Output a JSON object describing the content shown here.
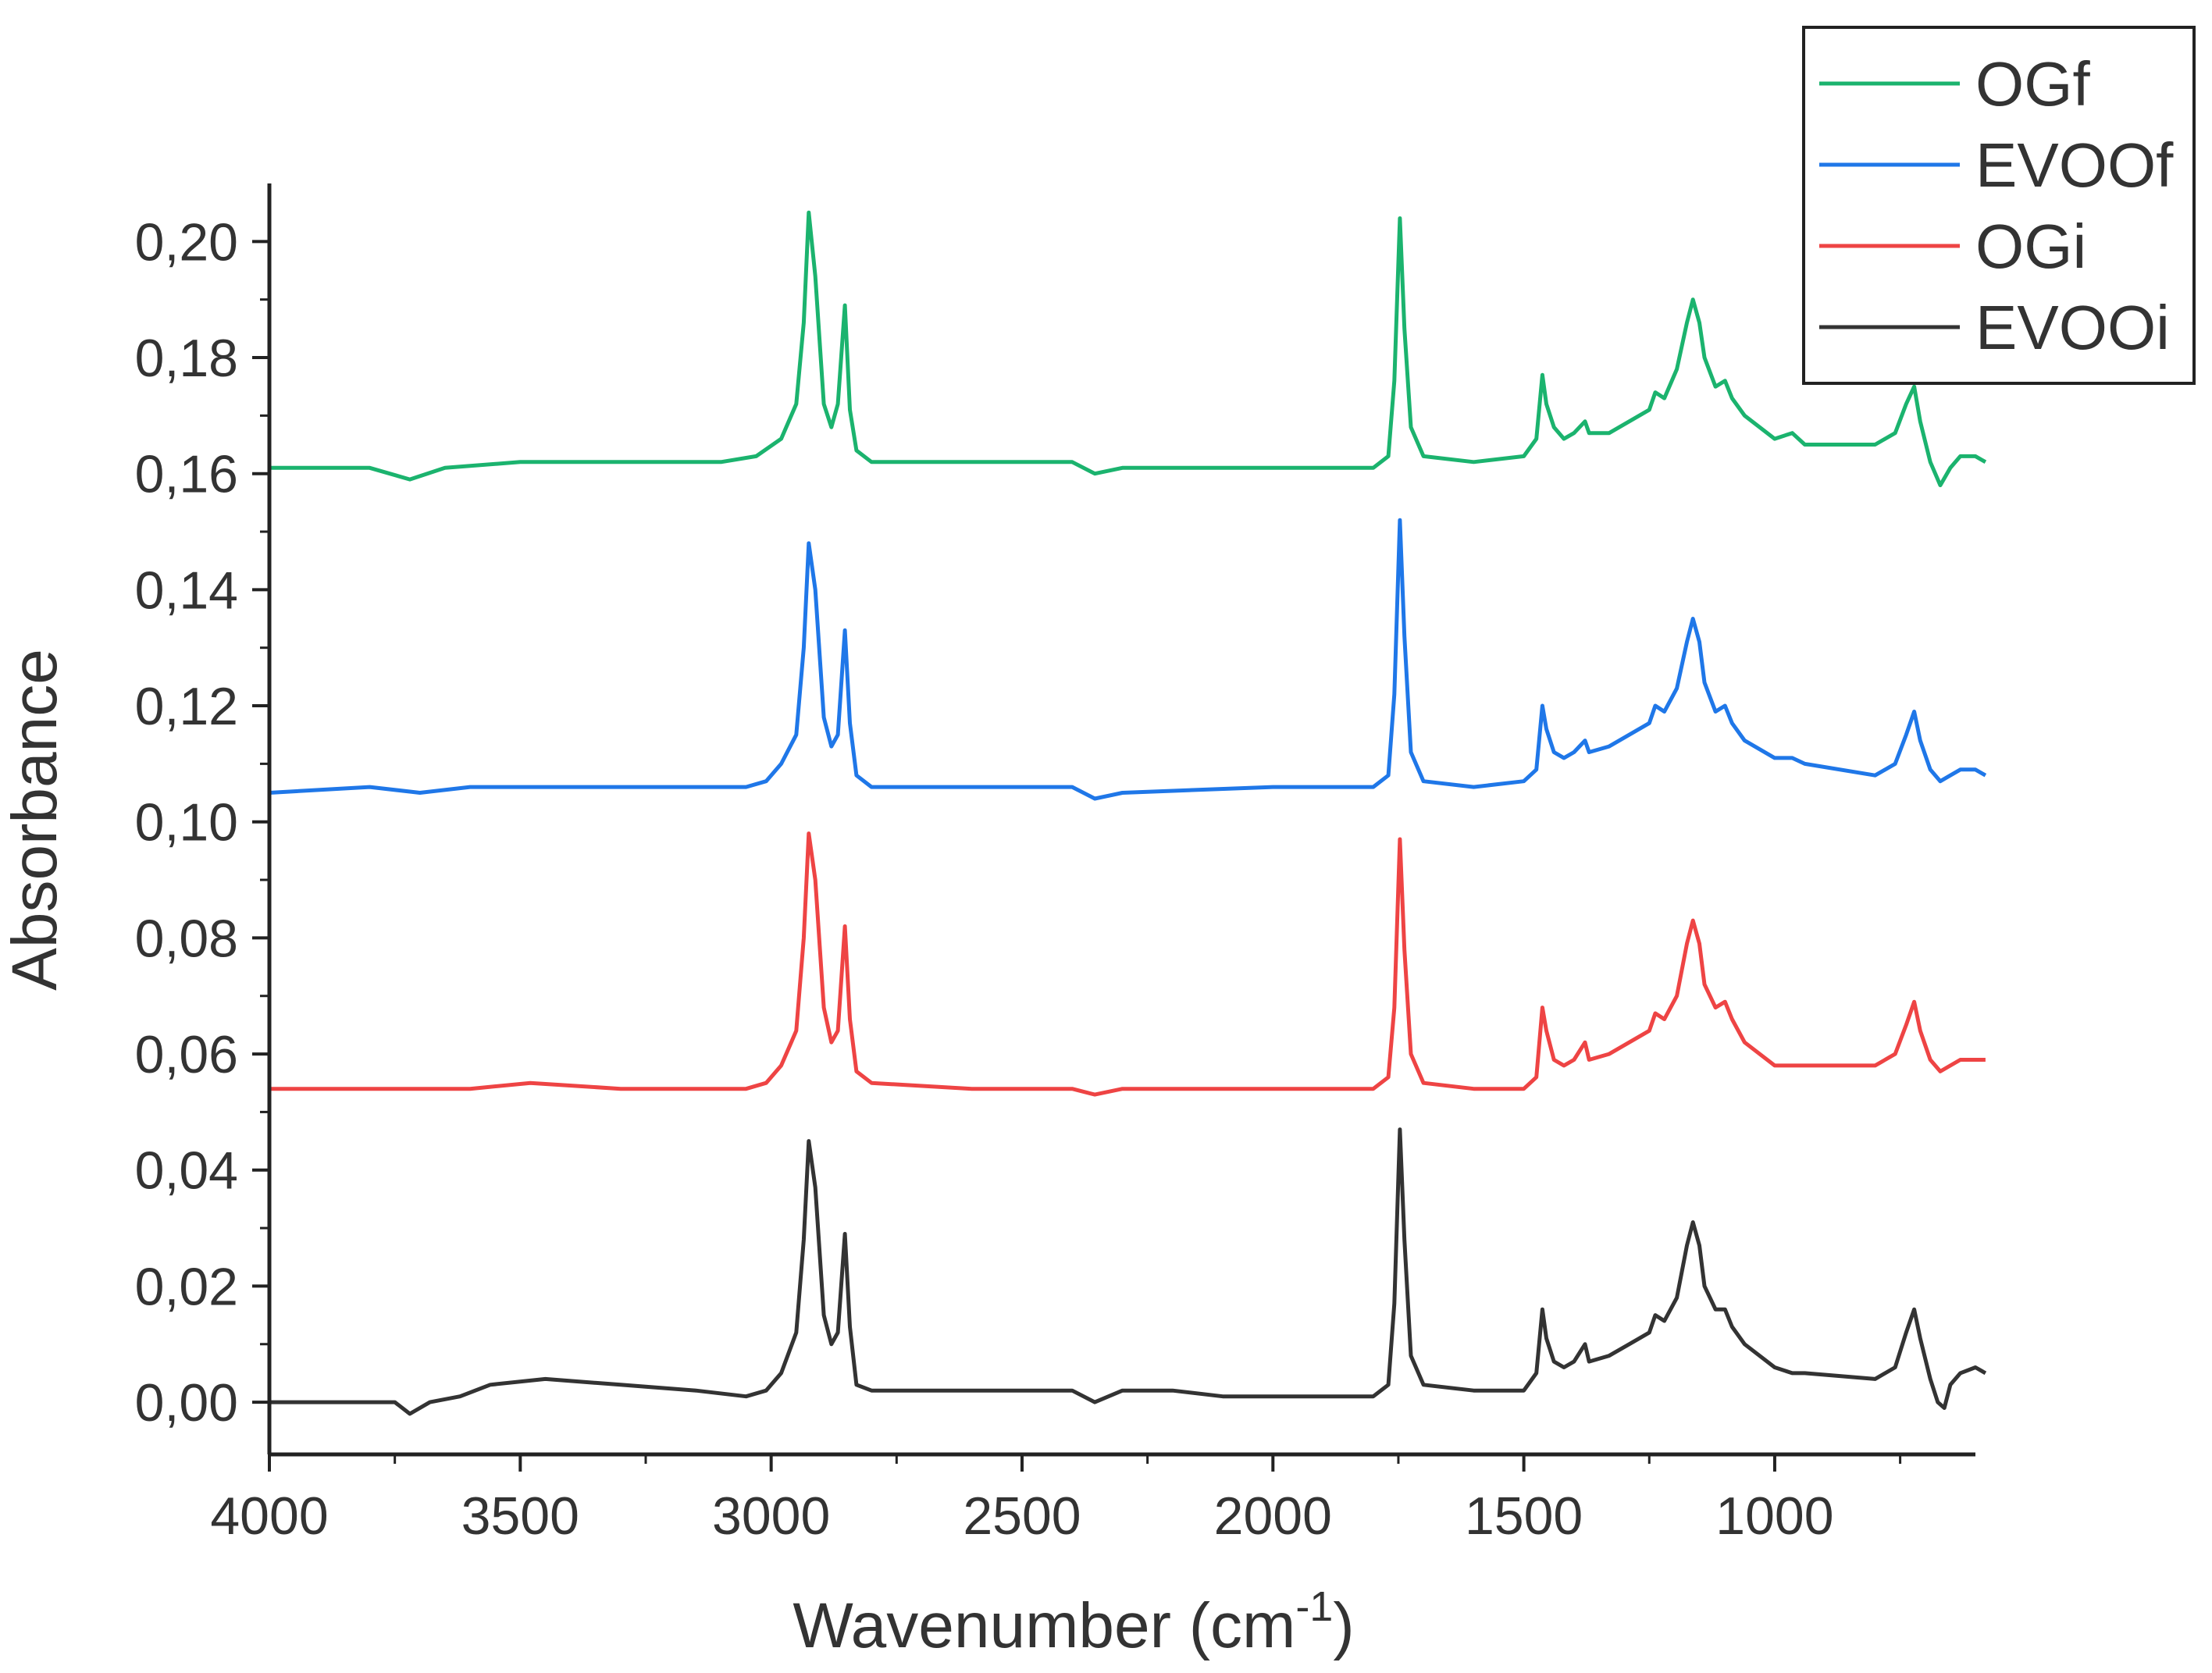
{
  "chart_data": {
    "type": "line",
    "xlabel": "Wavenumber (cm",
    "xlabel_sup": "-1",
    "xlabel_close": ")",
    "ylabel": "Absorbance",
    "xlim": [
      4000,
      600
    ],
    "ylim": [
      -0.009,
      0.21
    ],
    "x_ticks": [
      4000,
      3500,
      3000,
      2500,
      2000,
      1500,
      1000
    ],
    "x_tick_labels": [
      "4000",
      "3500",
      "3000",
      "2500",
      "2000",
      "1500",
      "1000"
    ],
    "y_ticks": [
      0.0,
      0.02,
      0.04,
      0.06,
      0.08,
      0.1,
      0.12,
      0.14,
      0.16,
      0.18,
      0.2
    ],
    "y_tick_labels": [
      "0,00",
      "0,02",
      "0,04",
      "0,06",
      "0,08",
      "0,10",
      "0,12",
      "0,14",
      "0,16",
      "0,18",
      "0,20"
    ],
    "grid": false,
    "legend_position": "top-right",
    "series": [
      {
        "name": "OGf",
        "color": "#1bb36e",
        "points": [
          [
            4000,
            0.161
          ],
          [
            3800,
            0.161
          ],
          [
            3720,
            0.159
          ],
          [
            3650,
            0.161
          ],
          [
            3500,
            0.162
          ],
          [
            3300,
            0.162
          ],
          [
            3100,
            0.162
          ],
          [
            3030,
            0.163
          ],
          [
            2980,
            0.166
          ],
          [
            2950,
            0.172
          ],
          [
            2935,
            0.186
          ],
          [
            2925,
            0.205
          ],
          [
            2912,
            0.194
          ],
          [
            2895,
            0.172
          ],
          [
            2880,
            0.168
          ],
          [
            2867,
            0.172
          ],
          [
            2853,
            0.189
          ],
          [
            2843,
            0.171
          ],
          [
            2830,
            0.164
          ],
          [
            2800,
            0.162
          ],
          [
            2600,
            0.162
          ],
          [
            2400,
            0.162
          ],
          [
            2355,
            0.16
          ],
          [
            2300,
            0.161
          ],
          [
            2000,
            0.161
          ],
          [
            1800,
            0.161
          ],
          [
            1770,
            0.163
          ],
          [
            1758,
            0.176
          ],
          [
            1747,
            0.204
          ],
          [
            1738,
            0.185
          ],
          [
            1725,
            0.168
          ],
          [
            1700,
            0.163
          ],
          [
            1600,
            0.162
          ],
          [
            1500,
            0.163
          ],
          [
            1475,
            0.166
          ],
          [
            1463,
            0.177
          ],
          [
            1455,
            0.172
          ],
          [
            1440,
            0.168
          ],
          [
            1420,
            0.166
          ],
          [
            1400,
            0.167
          ],
          [
            1378,
            0.169
          ],
          [
            1370,
            0.167
          ],
          [
            1330,
            0.167
          ],
          [
            1290,
            0.169
          ],
          [
            1250,
            0.171
          ],
          [
            1238,
            0.174
          ],
          [
            1220,
            0.173
          ],
          [
            1195,
            0.178
          ],
          [
            1175,
            0.186
          ],
          [
            1163,
            0.19
          ],
          [
            1150,
            0.186
          ],
          [
            1140,
            0.18
          ],
          [
            1118,
            0.175
          ],
          [
            1099,
            0.176
          ],
          [
            1085,
            0.173
          ],
          [
            1060,
            0.17
          ],
          [
            1000,
            0.166
          ],
          [
            965,
            0.167
          ],
          [
            940,
            0.165
          ],
          [
            800,
            0.165
          ],
          [
            760,
            0.167
          ],
          [
            738,
            0.172
          ],
          [
            722,
            0.175
          ],
          [
            710,
            0.169
          ],
          [
            690,
            0.162
          ],
          [
            670,
            0.158
          ],
          [
            650,
            0.161
          ],
          [
            630,
            0.163
          ],
          [
            600,
            0.163
          ],
          [
            580,
            0.162
          ]
        ]
      },
      {
        "name": "EVOOf",
        "color": "#1f77e8",
        "points": [
          [
            4000,
            0.105
          ],
          [
            3800,
            0.106
          ],
          [
            3700,
            0.105
          ],
          [
            3600,
            0.106
          ],
          [
            3400,
            0.106
          ],
          [
            3200,
            0.106
          ],
          [
            3050,
            0.106
          ],
          [
            3010,
            0.107
          ],
          [
            2980,
            0.11
          ],
          [
            2950,
            0.115
          ],
          [
            2935,
            0.13
          ],
          [
            2925,
            0.148
          ],
          [
            2912,
            0.14
          ],
          [
            2895,
            0.118
          ],
          [
            2880,
            0.113
          ],
          [
            2867,
            0.115
          ],
          [
            2853,
            0.133
          ],
          [
            2843,
            0.117
          ],
          [
            2830,
            0.108
          ],
          [
            2800,
            0.106
          ],
          [
            2600,
            0.106
          ],
          [
            2400,
            0.106
          ],
          [
            2355,
            0.104
          ],
          [
            2300,
            0.105
          ],
          [
            2000,
            0.106
          ],
          [
            1800,
            0.106
          ],
          [
            1770,
            0.108
          ],
          [
            1758,
            0.122
          ],
          [
            1747,
            0.152
          ],
          [
            1738,
            0.132
          ],
          [
            1725,
            0.112
          ],
          [
            1700,
            0.107
          ],
          [
            1600,
            0.106
          ],
          [
            1500,
            0.107
          ],
          [
            1475,
            0.109
          ],
          [
            1463,
            0.12
          ],
          [
            1455,
            0.116
          ],
          [
            1440,
            0.112
          ],
          [
            1420,
            0.111
          ],
          [
            1400,
            0.112
          ],
          [
            1378,
            0.114
          ],
          [
            1370,
            0.112
          ],
          [
            1330,
            0.113
          ],
          [
            1290,
            0.115
          ],
          [
            1250,
            0.117
          ],
          [
            1238,
            0.12
          ],
          [
            1220,
            0.119
          ],
          [
            1195,
            0.123
          ],
          [
            1175,
            0.131
          ],
          [
            1163,
            0.135
          ],
          [
            1150,
            0.131
          ],
          [
            1140,
            0.124
          ],
          [
            1118,
            0.119
          ],
          [
            1099,
            0.12
          ],
          [
            1085,
            0.117
          ],
          [
            1060,
            0.114
          ],
          [
            1000,
            0.111
          ],
          [
            965,
            0.111
          ],
          [
            940,
            0.11
          ],
          [
            800,
            0.108
          ],
          [
            760,
            0.11
          ],
          [
            738,
            0.115
          ],
          [
            722,
            0.119
          ],
          [
            710,
            0.114
          ],
          [
            690,
            0.109
          ],
          [
            670,
            0.107
          ],
          [
            650,
            0.108
          ],
          [
            630,
            0.109
          ],
          [
            600,
            0.109
          ],
          [
            580,
            0.108
          ]
        ]
      },
      {
        "name": "OGi",
        "color": "#ee4444",
        "points": [
          [
            4000,
            0.054
          ],
          [
            3800,
            0.054
          ],
          [
            3700,
            0.054
          ],
          [
            3600,
            0.054
          ],
          [
            3480,
            0.055
          ],
          [
            3300,
            0.054
          ],
          [
            3050,
            0.054
          ],
          [
            3010,
            0.055
          ],
          [
            2980,
            0.058
          ],
          [
            2950,
            0.064
          ],
          [
            2935,
            0.08
          ],
          [
            2925,
            0.098
          ],
          [
            2912,
            0.09
          ],
          [
            2895,
            0.068
          ],
          [
            2880,
            0.062
          ],
          [
            2867,
            0.064
          ],
          [
            2853,
            0.082
          ],
          [
            2843,
            0.066
          ],
          [
            2830,
            0.057
          ],
          [
            2800,
            0.055
          ],
          [
            2600,
            0.054
          ],
          [
            2400,
            0.054
          ],
          [
            2355,
            0.053
          ],
          [
            2300,
            0.054
          ],
          [
            2000,
            0.054
          ],
          [
            1800,
            0.054
          ],
          [
            1770,
            0.056
          ],
          [
            1758,
            0.068
          ],
          [
            1747,
            0.097
          ],
          [
            1738,
            0.078
          ],
          [
            1725,
            0.06
          ],
          [
            1700,
            0.055
          ],
          [
            1600,
            0.054
          ],
          [
            1500,
            0.054
          ],
          [
            1475,
            0.056
          ],
          [
            1463,
            0.068
          ],
          [
            1455,
            0.064
          ],
          [
            1440,
            0.059
          ],
          [
            1420,
            0.058
          ],
          [
            1400,
            0.059
          ],
          [
            1378,
            0.062
          ],
          [
            1370,
            0.059
          ],
          [
            1330,
            0.06
          ],
          [
            1290,
            0.062
          ],
          [
            1250,
            0.064
          ],
          [
            1238,
            0.067
          ],
          [
            1220,
            0.066
          ],
          [
            1195,
            0.07
          ],
          [
            1175,
            0.079
          ],
          [
            1163,
            0.083
          ],
          [
            1150,
            0.079
          ],
          [
            1140,
            0.072
          ],
          [
            1118,
            0.068
          ],
          [
            1099,
            0.069
          ],
          [
            1085,
            0.066
          ],
          [
            1060,
            0.062
          ],
          [
            1000,
            0.058
          ],
          [
            965,
            0.058
          ],
          [
            940,
            0.058
          ],
          [
            800,
            0.058
          ],
          [
            760,
            0.06
          ],
          [
            738,
            0.065
          ],
          [
            722,
            0.069
          ],
          [
            710,
            0.064
          ],
          [
            690,
            0.059
          ],
          [
            670,
            0.057
          ],
          [
            650,
            0.058
          ],
          [
            630,
            0.059
          ],
          [
            600,
            0.059
          ],
          [
            580,
            0.059
          ]
        ]
      },
      {
        "name": "EVOOi",
        "color": "#333333",
        "points": [
          [
            4000,
            0.0
          ],
          [
            3850,
            0.0
          ],
          [
            3750,
            0.0
          ],
          [
            3720,
            -0.002
          ],
          [
            3680,
            0.0
          ],
          [
            3620,
            0.001
          ],
          [
            3560,
            0.003
          ],
          [
            3450,
            0.004
          ],
          [
            3300,
            0.003
          ],
          [
            3150,
            0.002
          ],
          [
            3050,
            0.001
          ],
          [
            3010,
            0.002
          ],
          [
            2980,
            0.005
          ],
          [
            2950,
            0.012
          ],
          [
            2935,
            0.028
          ],
          [
            2925,
            0.045
          ],
          [
            2912,
            0.037
          ],
          [
            2895,
            0.015
          ],
          [
            2880,
            0.01
          ],
          [
            2867,
            0.012
          ],
          [
            2853,
            0.029
          ],
          [
            2843,
            0.013
          ],
          [
            2830,
            0.003
          ],
          [
            2800,
            0.002
          ],
          [
            2600,
            0.002
          ],
          [
            2500,
            0.002
          ],
          [
            2400,
            0.002
          ],
          [
            2355,
            0.0
          ],
          [
            2300,
            0.002
          ],
          [
            2200,
            0.002
          ],
          [
            2100,
            0.001
          ],
          [
            2000,
            0.001
          ],
          [
            1800,
            0.001
          ],
          [
            1770,
            0.003
          ],
          [
            1758,
            0.017
          ],
          [
            1747,
            0.047
          ],
          [
            1738,
            0.028
          ],
          [
            1725,
            0.008
          ],
          [
            1700,
            0.003
          ],
          [
            1600,
            0.002
          ],
          [
            1500,
            0.002
          ],
          [
            1475,
            0.005
          ],
          [
            1463,
            0.016
          ],
          [
            1455,
            0.011
          ],
          [
            1440,
            0.007
          ],
          [
            1420,
            0.006
          ],
          [
            1400,
            0.007
          ],
          [
            1378,
            0.01
          ],
          [
            1370,
            0.007
          ],
          [
            1330,
            0.008
          ],
          [
            1290,
            0.01
          ],
          [
            1250,
            0.012
          ],
          [
            1238,
            0.015
          ],
          [
            1220,
            0.014
          ],
          [
            1195,
            0.018
          ],
          [
            1175,
            0.027
          ],
          [
            1163,
            0.031
          ],
          [
            1150,
            0.027
          ],
          [
            1140,
            0.02
          ],
          [
            1118,
            0.016
          ],
          [
            1099,
            0.016
          ],
          [
            1085,
            0.013
          ],
          [
            1060,
            0.01
          ],
          [
            1000,
            0.006
          ],
          [
            965,
            0.005
          ],
          [
            940,
            0.005
          ],
          [
            800,
            0.004
          ],
          [
            760,
            0.006
          ],
          [
            738,
            0.012
          ],
          [
            722,
            0.016
          ],
          [
            710,
            0.011
          ],
          [
            690,
            0.004
          ],
          [
            675,
            0.0
          ],
          [
            662,
            -0.001
          ],
          [
            650,
            0.003
          ],
          [
            630,
            0.005
          ],
          [
            600,
            0.006
          ],
          [
            580,
            0.005
          ]
        ]
      }
    ]
  }
}
